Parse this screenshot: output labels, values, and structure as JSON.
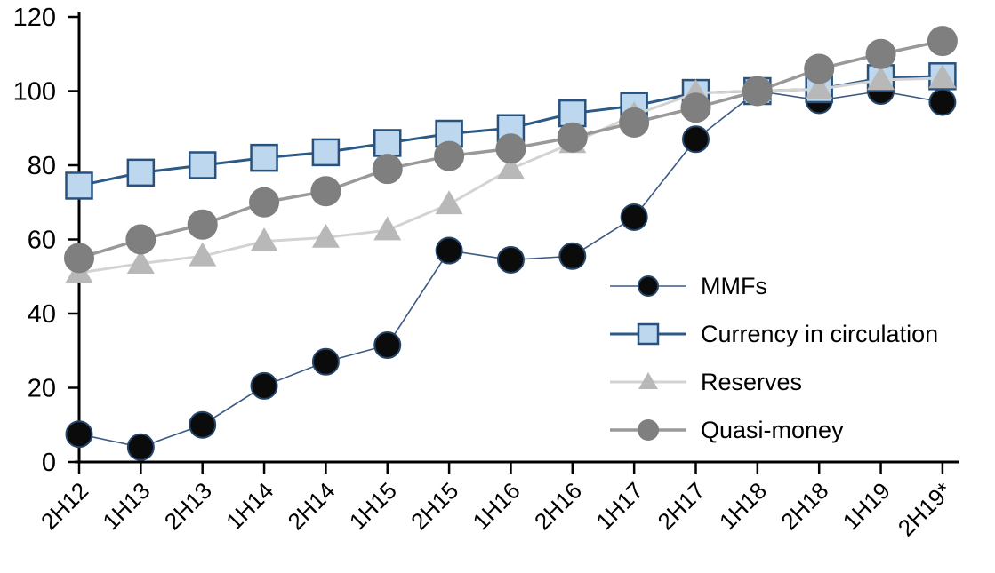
{
  "chart_data": {
    "type": "line",
    "title": "",
    "xlabel": "",
    "ylabel": "",
    "categories": [
      "2H12",
      "1H13",
      "2H13",
      "1H14",
      "2H14",
      "1H15",
      "2H15",
      "1H16",
      "2H16",
      "1H17",
      "2H17",
      "1H18",
      "2H18",
      "1H19",
      "2H19*"
    ],
    "yticks": [
      0,
      20,
      40,
      60,
      80,
      100,
      120
    ],
    "ylim": [
      0,
      120
    ],
    "grid": false,
    "legend_position": "inside-right",
    "series": [
      {
        "name": "MMFs",
        "marker": "circle",
        "marker_size": 14.5,
        "fill": "#0b0b0b",
        "stroke": "#24466b",
        "line_color": "#3b5a85",
        "line_width": 1.6,
        "values": [
          7.5,
          4,
          10,
          20.5,
          27,
          31.5,
          57,
          54.5,
          55.5,
          66,
          87,
          100,
          97.5,
          100,
          97
        ]
      },
      {
        "name": "Currency in circulation",
        "marker": "square",
        "marker_size": 29,
        "fill": "#bdd7ee",
        "stroke": "#27527e",
        "line_color": "#2c5a87",
        "line_width": 3,
        "values": [
          74.5,
          78,
          80,
          82,
          83.5,
          86,
          88.5,
          90,
          94,
          96,
          99.5,
          100,
          100.5,
          103.5,
          104
        ]
      },
      {
        "name": "Reserves",
        "marker": "triangle",
        "marker_size": 31,
        "fill": "#b8b8b8",
        "stroke": "#b8b8b8",
        "line_color": "#d3d3d3",
        "line_width": 3,
        "values": [
          51,
          53.5,
          55.5,
          59.5,
          60.5,
          62.5,
          69.5,
          79,
          86,
          93.5,
          99.5,
          100,
          100.5,
          103,
          103.5
        ]
      },
      {
        "name": "Quasi-money",
        "marker": "circle",
        "marker_size": 16,
        "fill": "#7f7f7f",
        "stroke": "#7f7f7f",
        "line_color": "#999999",
        "line_width": 3.5,
        "values": [
          55,
          60,
          64,
          70,
          73,
          79,
          82.5,
          84.5,
          87.5,
          91.5,
          95.5,
          100,
          106,
          110,
          113.5
        ]
      }
    ],
    "axis_color": "#000000"
  }
}
